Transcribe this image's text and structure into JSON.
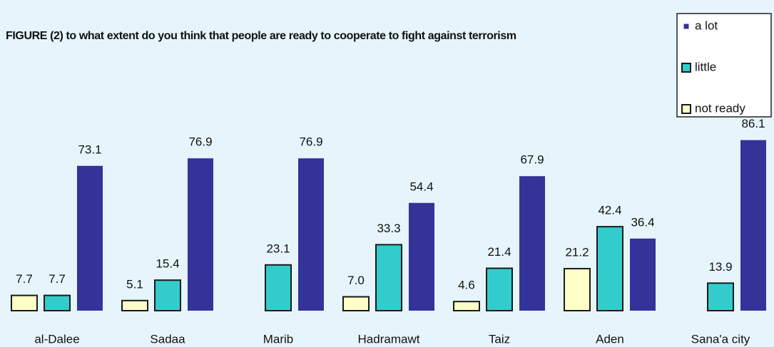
{
  "chart_data": {
    "type": "bar",
    "title": "FIGURE (2) to what extent do you think that people are ready to cooperate to fight against terrorism",
    "categories": [
      "al-Dalee",
      "Sadaa",
      "Marib",
      "Hadramawt",
      "Taiz",
      "Aden",
      "Sana'a city"
    ],
    "series": [
      {
        "name": "not ready",
        "color": "#ffffc8",
        "values": [
          7.7,
          5.1,
          null,
          7,
          4.6,
          21.2,
          null
        ],
        "value_labels": [
          "7.7",
          "5.1",
          null,
          "7.0",
          "4.6",
          "21.2",
          null
        ]
      },
      {
        "name": "little",
        "color": "#33cccc",
        "values": [
          7.7,
          15.4,
          23.1,
          33.3,
          21.4,
          42.4,
          13.9
        ],
        "value_labels": [
          "7.7",
          "15.4",
          "23.1",
          "33.3",
          "21.4",
          "42.4",
          "13.9"
        ]
      },
      {
        "name": "a lot",
        "color": "#333399",
        "values": [
          73.1,
          76.9,
          76.9,
          54.4,
          67.9,
          36.4,
          86.1
        ],
        "value_labels": [
          "73.1",
          "76.9",
          "76.9",
          "54.4",
          "67.9",
          "36.4",
          "86.1"
        ]
      }
    ],
    "ylim": [
      0,
      100
    ],
    "legend": "top-right"
  }
}
